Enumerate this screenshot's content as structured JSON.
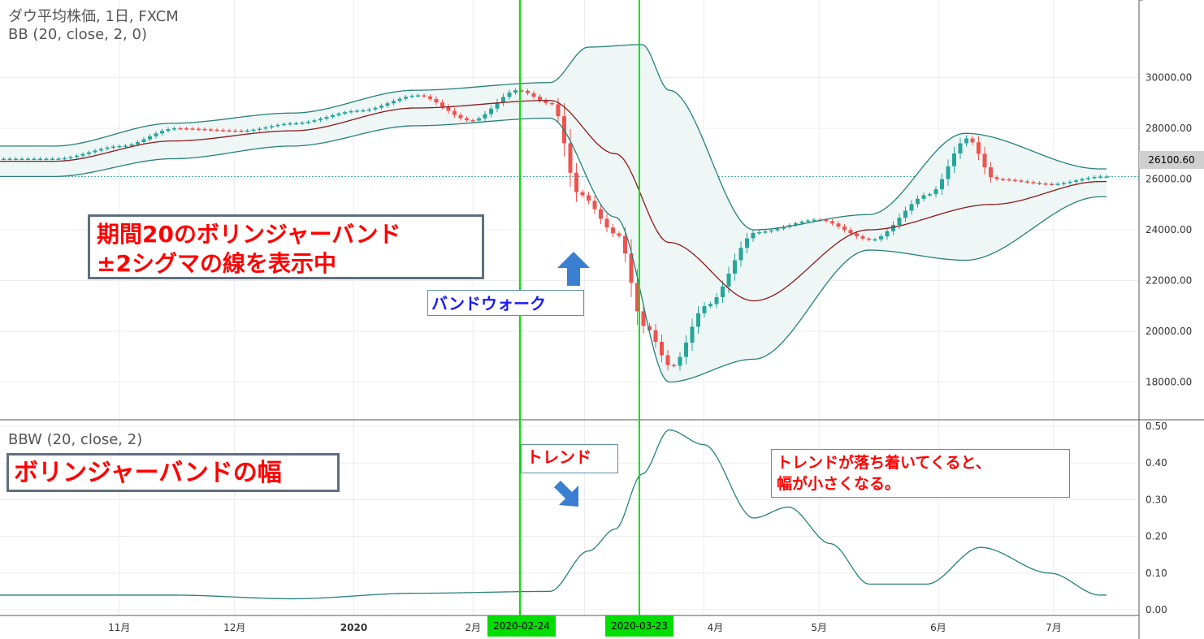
{
  "header": {
    "title": "ダウ平均株価, 1日, FXCM",
    "bb_legend": "BB (20, close, 2, 0)",
    "bbw_legend": "BBW (20, close, 2)"
  },
  "annotations": {
    "bb_box_line1": "期間20のボリンジャーバンド",
    "bb_box_line2": "±2シグマの線を表示中",
    "band_walk": "バンドウォーク",
    "width_box": "ボリンジャーバンドの幅",
    "trend": "トレンド",
    "calm_line1": "トレンドが落ち着いてくると、",
    "calm_line2": "幅が小さくなる。"
  },
  "markers": {
    "date1": "2020-02-24",
    "date2": "2020-03-23"
  },
  "price_label": "26100.60",
  "colors": {
    "up": "#26a69a",
    "down": "#ef5350",
    "band": "#26807a",
    "basis": "#8b1a1a",
    "band_fill": "#eef6f6",
    "marker": "#00e000",
    "arrow": "#3a7fd0",
    "callout_text": "#ff0000",
    "band_walk_text": "#1a1aff"
  },
  "chart_data": [
    {
      "type": "candlestick",
      "title": "ダウ平均株価, 1日, FXCM",
      "x_ticks": [
        "11月",
        "12月",
        "2020",
        "2月",
        "4月",
        "5月",
        "6月",
        "7月"
      ],
      "ylim": [
        17000,
        31500
      ],
      "y_ticks": [
        18000,
        20000,
        22000,
        24000,
        26000,
        28000,
        30000
      ],
      "last_price": 26100.6,
      "series": [
        {
          "name": "BB (20, close, 2, 0)",
          "kind": "bollinger"
        }
      ],
      "close_approx": [
        [
          "2019-10-15",
          26800
        ],
        [
          "2019-11-01",
          27300
        ],
        [
          "2019-11-15",
          28000
        ],
        [
          "2019-12-02",
          27900
        ],
        [
          "2019-12-16",
          28200
        ],
        [
          "2020-01-02",
          28700
        ],
        [
          "2020-01-17",
          29300
        ],
        [
          "2020-01-31",
          28300
        ],
        [
          "2020-02-12",
          29500
        ],
        [
          "2020-02-21",
          28950
        ],
        [
          "2020-02-28",
          25400
        ],
        [
          "2020-03-09",
          23800
        ],
        [
          "2020-03-16",
          20200
        ],
        [
          "2020-03-23",
          18600
        ],
        [
          "2020-04-01",
          21000
        ],
        [
          "2020-04-14",
          23900
        ],
        [
          "2020-04-30",
          24400
        ],
        [
          "2020-05-14",
          23600
        ],
        [
          "2020-05-29",
          25400
        ],
        [
          "2020-06-08",
          27600
        ],
        [
          "2020-06-15",
          26000
        ],
        [
          "2020-06-30",
          25800
        ],
        [
          "2020-07-13",
          26100
        ]
      ],
      "basis_approx": [
        [
          "2019-10-15",
          26700
        ],
        [
          "2019-11-15",
          27500
        ],
        [
          "2019-12-16",
          27900
        ],
        [
          "2020-01-17",
          28800
        ],
        [
          "2020-02-21",
          29100
        ],
        [
          "2020-03-09",
          27000
        ],
        [
          "2020-03-23",
          23500
        ],
        [
          "2020-04-14",
          21200
        ],
        [
          "2020-05-14",
          24000
        ],
        [
          "2020-06-15",
          25000
        ],
        [
          "2020-07-13",
          25900
        ]
      ],
      "upper_approx": [
        [
          "2019-10-15",
          27300
        ],
        [
          "2019-11-15",
          28200
        ],
        [
          "2019-12-16",
          28600
        ],
        [
          "2020-01-17",
          29500
        ],
        [
          "2020-02-21",
          29800
        ],
        [
          "2020-03-02",
          31200
        ],
        [
          "2020-03-16",
          31300
        ],
        [
          "2020-03-23",
          29500
        ],
        [
          "2020-04-14",
          24000
        ],
        [
          "2020-05-14",
          24600
        ],
        [
          "2020-06-08",
          27800
        ],
        [
          "2020-07-13",
          26400
        ]
      ],
      "lower_approx": [
        [
          "2019-10-15",
          26100
        ],
        [
          "2019-11-15",
          26800
        ],
        [
          "2019-12-16",
          27300
        ],
        [
          "2020-01-17",
          28100
        ],
        [
          "2020-02-21",
          28400
        ],
        [
          "2020-03-09",
          24500
        ],
        [
          "2020-03-23",
          18000
        ],
        [
          "2020-04-14",
          18900
        ],
        [
          "2020-05-14",
          23200
        ],
        [
          "2020-06-08",
          22800
        ],
        [
          "2020-07-13",
          25300
        ]
      ]
    },
    {
      "type": "line",
      "title": "BBW (20, close, 2)",
      "ylim": [
        0,
        0.5
      ],
      "y_ticks": [
        0.0,
        0.1,
        0.2,
        0.3,
        0.4,
        0.5
      ],
      "series": [
        {
          "name": "BBW (20, close, 2)",
          "points_approx": [
            [
              "2019-10-01",
              0.04
            ],
            [
              "2019-11-15",
              0.04
            ],
            [
              "2019-12-16",
              0.03
            ],
            [
              "2020-01-17",
              0.045
            ],
            [
              "2020-02-21",
              0.05
            ],
            [
              "2020-03-02",
              0.16
            ],
            [
              "2020-03-09",
              0.22
            ],
            [
              "2020-03-16",
              0.37
            ],
            [
              "2020-03-23",
              0.49
            ],
            [
              "2020-04-01",
              0.45
            ],
            [
              "2020-04-14",
              0.25
            ],
            [
              "2020-04-23",
              0.28
            ],
            [
              "2020-05-04",
              0.18
            ],
            [
              "2020-05-14",
              0.07
            ],
            [
              "2020-05-29",
              0.07
            ],
            [
              "2020-06-12",
              0.17
            ],
            [
              "2020-06-30",
              0.1
            ],
            [
              "2020-07-13",
              0.04
            ]
          ]
        }
      ]
    }
  ]
}
